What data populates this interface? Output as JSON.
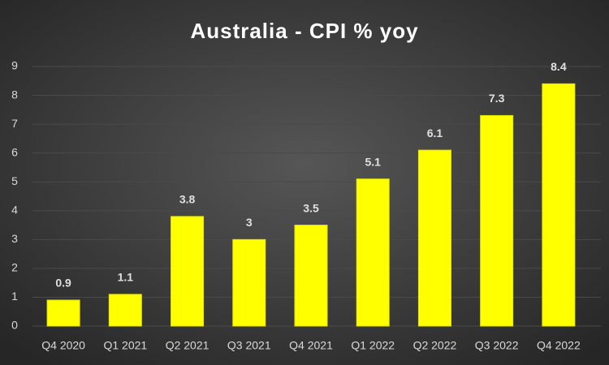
{
  "chart_data": {
    "type": "bar",
    "title": "Australia - CPI % yoy",
    "categories": [
      "Q4 2020",
      "Q1 2021",
      "Q2 2021",
      "Q3 2021",
      "Q4 2021",
      "Q1 2022",
      "Q2 2022",
      "Q3 2022",
      "Q4 2022"
    ],
    "values": [
      0.9,
      1.1,
      3.8,
      3,
      3.5,
      5.1,
      6.1,
      7.3,
      8.4
    ],
    "color": "#ffff00",
    "ylim": [
      0,
      9
    ],
    "yticks": [
      0,
      1,
      2,
      3,
      4,
      5,
      6,
      7,
      8,
      9
    ],
    "grid": true
  }
}
